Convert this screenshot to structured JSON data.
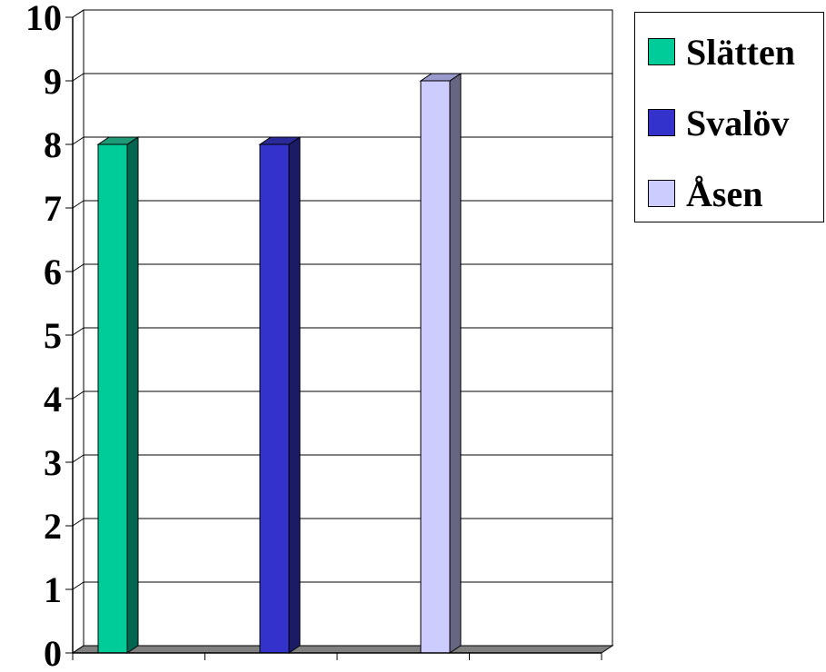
{
  "chart_data": {
    "type": "bar",
    "title": "",
    "xlabel": "",
    "ylabel": "",
    "ylim": [
      0,
      10
    ],
    "yticks": [
      "0",
      "1",
      "2",
      "3",
      "4",
      "5",
      "6",
      "7",
      "8",
      "9",
      "10"
    ],
    "grid": true,
    "legend_position": "top-right",
    "series": [
      {
        "name": "Slätten",
        "value": 8,
        "color": "#00cc99",
        "side_color": "#006650",
        "top_color": "#1f9a78"
      },
      {
        "name": "Svalöv",
        "value": 8,
        "color": "#3333cc",
        "side_color": "#1a1a66",
        "top_color": "#2a2a99"
      },
      {
        "name": "Åsen",
        "value": 9,
        "color": "#ccccff",
        "side_color": "#666680",
        "top_color": "#9999cc"
      }
    ]
  }
}
